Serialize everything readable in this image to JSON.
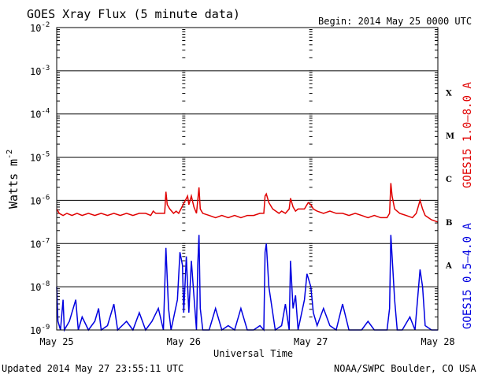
{
  "chart_data": {
    "type": "line",
    "title": "GOES Xray Flux (5 minute data)",
    "begin_label": "Begin:  2014 May 25 0000 UTC",
    "xlabel": "Universal Time",
    "ylabel": "Watts m",
    "ylabel_sup": "-2",
    "yscale": "log",
    "ylim": [
      1e-09,
      0.01
    ],
    "xlim": [
      0,
      3
    ],
    "x_ticks": [
      {
        "x": 0,
        "label": "May 25"
      },
      {
        "x": 1,
        "label": "May 26"
      },
      {
        "x": 2,
        "label": "May 27"
      },
      {
        "x": 3,
        "label": "May 28"
      }
    ],
    "y_ticks": [
      {
        "exp": -9,
        "base": "10",
        "sup": "-9"
      },
      {
        "exp": -8,
        "base": "10",
        "sup": "-8"
      },
      {
        "exp": -7,
        "base": "10",
        "sup": "-7"
      },
      {
        "exp": -6,
        "base": "10",
        "sup": "-6"
      },
      {
        "exp": -5,
        "base": "10",
        "sup": "-5"
      },
      {
        "exp": -4,
        "base": "10",
        "sup": "-4"
      },
      {
        "exp": -3,
        "base": "10",
        "sup": "-3"
      },
      {
        "exp": -2,
        "base": "10",
        "sup": "-2"
      }
    ],
    "flare_classes": [
      {
        "label": "X",
        "exp": -3.5
      },
      {
        "label": "M",
        "exp": -4.5
      },
      {
        "label": "C",
        "exp": -5.5
      },
      {
        "label": "B",
        "exp": -6.5
      },
      {
        "label": "A",
        "exp": -7.5
      }
    ],
    "series": [
      {
        "name": "GOES15 1.0–8.0 A",
        "color": "#e00000",
        "points": [
          [
            0.0,
            -6.2
          ],
          [
            0.02,
            -6.3
          ],
          [
            0.05,
            -6.35
          ],
          [
            0.08,
            -6.3
          ],
          [
            0.12,
            -6.35
          ],
          [
            0.16,
            -6.3
          ],
          [
            0.2,
            -6.35
          ],
          [
            0.25,
            -6.3
          ],
          [
            0.3,
            -6.35
          ],
          [
            0.35,
            -6.3
          ],
          [
            0.4,
            -6.35
          ],
          [
            0.45,
            -6.3
          ],
          [
            0.5,
            -6.35
          ],
          [
            0.55,
            -6.3
          ],
          [
            0.6,
            -6.35
          ],
          [
            0.65,
            -6.3
          ],
          [
            0.7,
            -6.3
          ],
          [
            0.74,
            -6.35
          ],
          [
            0.76,
            -6.25
          ],
          [
            0.78,
            -6.3
          ],
          [
            0.82,
            -6.3
          ],
          [
            0.85,
            -6.3
          ],
          [
            0.86,
            -5.8
          ],
          [
            0.87,
            -6.1
          ],
          [
            0.89,
            -6.2
          ],
          [
            0.92,
            -6.3
          ],
          [
            0.94,
            -6.25
          ],
          [
            0.96,
            -6.3
          ],
          [
            1.03,
            -5.9
          ],
          [
            1.04,
            -6.1
          ],
          [
            1.06,
            -5.9
          ],
          [
            1.08,
            -6.15
          ],
          [
            1.1,
            -6.3
          ],
          [
            1.11,
            -6.0
          ],
          [
            1.12,
            -5.7
          ],
          [
            1.13,
            -6.2
          ],
          [
            1.15,
            -6.3
          ],
          [
            1.2,
            -6.35
          ],
          [
            1.25,
            -6.4
          ],
          [
            1.3,
            -6.35
          ],
          [
            1.35,
            -6.4
          ],
          [
            1.4,
            -6.35
          ],
          [
            1.45,
            -6.4
          ],
          [
            1.5,
            -6.35
          ],
          [
            1.55,
            -6.35
          ],
          [
            1.6,
            -6.3
          ],
          [
            1.63,
            -6.3
          ],
          [
            1.64,
            -5.9
          ],
          [
            1.65,
            -5.85
          ],
          [
            1.67,
            -6.05
          ],
          [
            1.7,
            -6.2
          ],
          [
            1.75,
            -6.3
          ],
          [
            1.77,
            -6.25
          ],
          [
            1.8,
            -6.3
          ],
          [
            1.83,
            -6.2
          ],
          [
            1.84,
            -5.95
          ],
          [
            1.86,
            -6.15
          ],
          [
            1.88,
            -6.25
          ],
          [
            1.9,
            -6.2
          ],
          [
            1.95,
            -6.2
          ],
          [
            1.98,
            -6.05
          ],
          [
            2.0,
            -6.1
          ],
          [
            2.02,
            -6.2
          ],
          [
            2.05,
            -6.25
          ],
          [
            2.1,
            -6.3
          ],
          [
            2.15,
            -6.25
          ],
          [
            2.2,
            -6.3
          ],
          [
            2.25,
            -6.3
          ],
          [
            2.3,
            -6.35
          ],
          [
            2.35,
            -6.3
          ],
          [
            2.4,
            -6.35
          ],
          [
            2.45,
            -6.4
          ],
          [
            2.5,
            -6.35
          ],
          [
            2.55,
            -6.4
          ],
          [
            2.6,
            -6.4
          ],
          [
            2.62,
            -6.3
          ],
          [
            2.63,
            -5.6
          ],
          [
            2.64,
            -5.9
          ],
          [
            2.66,
            -6.2
          ],
          [
            2.7,
            -6.3
          ],
          [
            2.75,
            -6.35
          ],
          [
            2.8,
            -6.4
          ],
          [
            2.83,
            -6.3
          ],
          [
            2.86,
            -6.0
          ],
          [
            2.88,
            -6.2
          ],
          [
            2.9,
            -6.35
          ],
          [
            2.95,
            -6.45
          ],
          [
            3.0,
            -6.5
          ]
        ]
      },
      {
        "name": "GOES15 0.5–4.0 A",
        "color": "#0000e0",
        "points": [
          [
            0.0,
            -8.0
          ],
          [
            0.01,
            -8.8
          ],
          [
            0.03,
            -9.0
          ],
          [
            0.05,
            -8.3
          ],
          [
            0.06,
            -9.0
          ],
          [
            0.1,
            -8.8
          ],
          [
            0.15,
            -8.3
          ],
          [
            0.17,
            -9.0
          ],
          [
            0.2,
            -8.7
          ],
          [
            0.25,
            -9.0
          ],
          [
            0.3,
            -8.8
          ],
          [
            0.33,
            -8.5
          ],
          [
            0.35,
            -9.0
          ],
          [
            0.4,
            -8.9
          ],
          [
            0.45,
            -8.4
          ],
          [
            0.48,
            -9.0
          ],
          [
            0.55,
            -8.8
          ],
          [
            0.6,
            -9.0
          ],
          [
            0.65,
            -8.6
          ],
          [
            0.7,
            -9.0
          ],
          [
            0.75,
            -8.8
          ],
          [
            0.8,
            -8.5
          ],
          [
            0.84,
            -9.0
          ],
          [
            0.86,
            -7.1
          ],
          [
            0.88,
            -8.5
          ],
          [
            0.9,
            -9.0
          ],
          [
            0.95,
            -8.3
          ],
          [
            0.97,
            -7.2
          ],
          [
            0.99,
            -7.5
          ],
          [
            1.0,
            -8.6
          ],
          [
            1.02,
            -7.3
          ],
          [
            1.04,
            -8.6
          ],
          [
            1.06,
            -7.4
          ],
          [
            1.08,
            -8.2
          ],
          [
            1.1,
            -9.0
          ],
          [
            1.11,
            -7.5
          ],
          [
            1.12,
            -6.8
          ],
          [
            1.13,
            -8.5
          ],
          [
            1.15,
            -9.0
          ],
          [
            1.2,
            -9.0
          ],
          [
            1.25,
            -8.5
          ],
          [
            1.3,
            -9.0
          ],
          [
            1.35,
            -8.9
          ],
          [
            1.4,
            -9.0
          ],
          [
            1.45,
            -8.5
          ],
          [
            1.5,
            -9.0
          ],
          [
            1.55,
            -9.0
          ],
          [
            1.6,
            -8.9
          ],
          [
            1.63,
            -9.0
          ],
          [
            1.64,
            -7.2
          ],
          [
            1.65,
            -7.0
          ],
          [
            1.67,
            -8.0
          ],
          [
            1.7,
            -8.6
          ],
          [
            1.72,
            -9.0
          ],
          [
            1.77,
            -8.9
          ],
          [
            1.8,
            -8.4
          ],
          [
            1.83,
            -9.0
          ],
          [
            1.84,
            -7.4
          ],
          [
            1.86,
            -8.5
          ],
          [
            1.88,
            -8.2
          ],
          [
            1.9,
            -9.0
          ],
          [
            1.95,
            -8.3
          ],
          [
            1.97,
            -7.7
          ],
          [
            2.0,
            -8.0
          ],
          [
            2.02,
            -8.6
          ],
          [
            2.05,
            -8.9
          ],
          [
            2.1,
            -8.5
          ],
          [
            2.15,
            -8.9
          ],
          [
            2.2,
            -9.0
          ],
          [
            2.25,
            -8.4
          ],
          [
            2.3,
            -9.0
          ],
          [
            2.35,
            -9.0
          ],
          [
            2.4,
            -9.0
          ],
          [
            2.45,
            -8.8
          ],
          [
            2.5,
            -9.0
          ],
          [
            2.55,
            -9.0
          ],
          [
            2.6,
            -9.0
          ],
          [
            2.62,
            -8.5
          ],
          [
            2.63,
            -6.8
          ],
          [
            2.64,
            -7.3
          ],
          [
            2.66,
            -8.3
          ],
          [
            2.68,
            -9.0
          ],
          [
            2.72,
            -9.0
          ],
          [
            2.78,
            -8.7
          ],
          [
            2.82,
            -9.0
          ],
          [
            2.86,
            -7.6
          ],
          [
            2.88,
            -8.0
          ],
          [
            2.9,
            -8.9
          ],
          [
            2.95,
            -9.0
          ],
          [
            3.0,
            -9.0
          ]
        ]
      }
    ],
    "footer_left": "Updated 2014 May 27 23:55:11 UTC",
    "footer_right": "NOAA/SWPC Boulder, CO USA"
  }
}
